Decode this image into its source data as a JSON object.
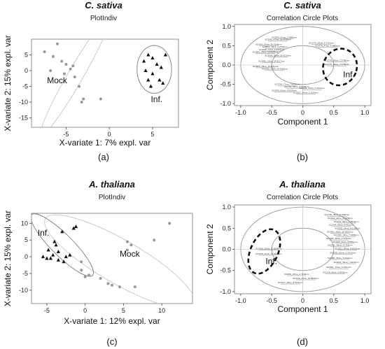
{
  "chart_data": [
    {
      "id": "a",
      "type": "scatter",
      "title": "C. sativa",
      "subtitle": "PlotIndiv",
      "xlabel": "X-variate 1: 7% expl. var",
      "ylabel": "X-variate 2: 15% expl. var",
      "panel_label": "(a)",
      "xlim": [
        -9,
        8
      ],
      "ylim": [
        -18,
        10
      ],
      "xticks": [
        -5,
        0,
        5
      ],
      "yticks": [
        5,
        0,
        -5,
        -10,
        -15
      ],
      "series": [
        {
          "name": "Mock",
          "marker": "circle",
          "color": "#999999",
          "points": [
            [
              -7.5,
              6
            ],
            [
              -6.5,
              4.5
            ],
            [
              -5.5,
              3
            ],
            [
              -6,
              8.5
            ],
            [
              -5,
              2
            ],
            [
              -4.5,
              0.5
            ],
            [
              -4,
              -2
            ],
            [
              -4.2,
              1.5
            ],
            [
              -3.5,
              -5
            ],
            [
              -3,
              -9
            ],
            [
              -3.2,
              -10
            ],
            [
              -1,
              -9
            ],
            [
              -6.8,
              0
            ],
            [
              -5.2,
              -1
            ]
          ]
        },
        {
          "name": "Inf.",
          "marker": "triangle",
          "color": "#111111",
          "points": [
            [
              4,
              3
            ],
            [
              4.5,
              5
            ],
            [
              5,
              4
            ],
            [
              5.5,
              2
            ],
            [
              6,
              1
            ],
            [
              4.2,
              0
            ],
            [
              5,
              -1
            ],
            [
              5.8,
              -3
            ],
            [
              4.8,
              -5
            ],
            [
              6.2,
              -4
            ],
            [
              4.5,
              -3
            ],
            [
              6.5,
              5
            ]
          ]
        }
      ],
      "ellipses": [
        {
          "cx": -4,
          "cy": -2,
          "rx": 7.8,
          "ry": 2.4,
          "angle_deg": -60,
          "color": "#cccccc"
        },
        {
          "cx": 5.2,
          "cy": 0.4,
          "rx": 2.0,
          "ry": 7.6,
          "angle_deg": 0,
          "color": "#888888"
        }
      ],
      "group_labels": [
        {
          "text": "Mock",
          "x": -7.2,
          "y": -4
        },
        {
          "text": "Inf.",
          "x": 4.8,
          "y": -10
        }
      ]
    },
    {
      "id": "b",
      "type": "scatter",
      "title": "C. sativa",
      "subtitle": "Correlation Circle Plots",
      "xlabel": "Component 1",
      "ylabel": "Component 2",
      "panel_label": "(b)",
      "xlim": [
        -1.1,
        1.1
      ],
      "ylim": [
        -1.05,
        1.05
      ],
      "xticks": [
        -1.0,
        -0.5,
        0.0,
        0.5,
        1.0
      ],
      "yticks": [
        1.0,
        0.5,
        0.0,
        -0.5,
        -1.0
      ],
      "circles": [
        1.0,
        0.5
      ],
      "variable_labels": [
        {
          "text": "SC3764_47me_2.0698mm",
          "x": -0.3,
          "y": 0.7
        },
        {
          "text": "SC3962_47me_25.8789mm",
          "x": -0.4,
          "y": 0.64
        },
        {
          "text": "SC4162_69me_26.3198mm",
          "x": -0.55,
          "y": 0.52
        },
        {
          "text": "SC8562_15me_3.0759mm",
          "x": -0.45,
          "y": 0.45
        },
        {
          "text": "SC3902_71me_5.4079mm",
          "x": -0.5,
          "y": 0.38
        },
        {
          "text": "SC3991_25me_29.8929mm",
          "x": -0.6,
          "y": 0.32
        },
        {
          "text": "SC3000_30me_25.6123mm",
          "x": -0.4,
          "y": 0.23
        },
        {
          "text": "SC3981_19me_14.5127mm",
          "x": -0.5,
          "y": 0.08
        },
        {
          "text": "SC3990_18me_23.6211mm",
          "x": -0.6,
          "y": -0.05
        },
        {
          "text": "SC2311_17me_29.9182mm",
          "x": -0.45,
          "y": -0.12
        },
        {
          "text": "SC3776_50me_8.7152mm",
          "x": 0.3,
          "y": 0.55
        },
        {
          "text": "SC3779_47me_4.5889mm",
          "x": 0.4,
          "y": 0.48
        },
        {
          "text": "SC3776_43me_7.5789mm",
          "x": 0.55,
          "y": 0.1
        },
        {
          "text": "SC3776_44me_7.0789mm",
          "x": 0.55,
          "y": 0.0
        },
        {
          "text": "SC3761_71me_7.6009mm",
          "x": -0.25,
          "y": -0.52
        },
        {
          "text": "SC1783_95me_9.3456mm",
          "x": -0.1,
          "y": -0.58
        },
        {
          "text": "SC4471_63me_6.2013mm",
          "x": 0.15,
          "y": -0.62
        },
        {
          "text": "SC3976_54me_4.6519mm",
          "x": -0.3,
          "y": -0.68
        },
        {
          "text": "SC0017_29me_3.1154mm",
          "x": 0.05,
          "y": -0.73
        }
      ],
      "highlight_ellipse": {
        "cx": 0.6,
        "cy": -0.05,
        "rx": 0.27,
        "ry": 0.48,
        "angle_deg": 20,
        "style": "dashed"
      },
      "group_labels": [
        {
          "text": "Inf.",
          "x": 0.65,
          "y": -0.32
        }
      ]
    },
    {
      "id": "c",
      "type": "scatter",
      "title": "A. thaliana",
      "subtitle": "PlotIndiv",
      "xlabel": "X-variate 1: 12% expl. var",
      "ylabel": "X-variate 2: 15% expl. var",
      "panel_label": "(c)",
      "xlim": [
        -7,
        14
      ],
      "ylim": [
        -14,
        13
      ],
      "xticks": [
        -5,
        0,
        5,
        10
      ],
      "yticks": [
        10,
        5,
        0,
        -5,
        -10
      ],
      "series": [
        {
          "name": "Inf.",
          "marker": "triangle",
          "color": "#111111",
          "points": [
            [
              -5.5,
              0
            ],
            [
              -5,
              -0.5
            ],
            [
              -4.5,
              -0.5
            ],
            [
              -4.2,
              0.5
            ],
            [
              -4,
              4.5
            ],
            [
              -3.8,
              3.5
            ],
            [
              -3.5,
              1.5
            ],
            [
              -3.5,
              -1
            ],
            [
              -3,
              7.5
            ],
            [
              -2.5,
              0
            ],
            [
              -2,
              0.5
            ],
            [
              -1.5,
              8.5
            ],
            [
              -1.2,
              9
            ],
            [
              -2.8,
              -1.5
            ],
            [
              -4.8,
              2
            ]
          ]
        },
        {
          "name": "Mock",
          "marker": "circle",
          "color": "#999999",
          "points": [
            [
              -0.5,
              -4
            ],
            [
              0,
              -6
            ],
            [
              0.5,
              -5.5
            ],
            [
              2,
              -6.5
            ],
            [
              3,
              -8
            ],
            [
              3.5,
              -8.5
            ],
            [
              4.5,
              -9
            ],
            [
              5.5,
              4.5
            ],
            [
              5.5,
              2
            ],
            [
              6,
              3.5
            ],
            [
              6.5,
              -9
            ],
            [
              9,
              5
            ],
            [
              11,
              10
            ],
            [
              -0.5,
              -1.5
            ]
          ]
        }
      ],
      "ellipses": [
        {
          "cx": 4.5,
          "cy": -1.5,
          "rx": 11.2,
          "ry": 6.5,
          "angle_deg": 30,
          "color": "#cccccc"
        },
        {
          "cx": -3,
          "cy": 3.5,
          "rx": 5.6,
          "ry": 3.2,
          "angle_deg": 45,
          "color": "#888888"
        }
      ],
      "group_labels": [
        {
          "text": "Inf.",
          "x": -6.2,
          "y": 6.3
        },
        {
          "text": "Mock",
          "x": 4.5,
          "y": 0
        }
      ]
    },
    {
      "id": "d",
      "type": "scatter",
      "title": "A. thaliana",
      "subtitle": "Correlation Circle Plots",
      "xlabel": "Component 1",
      "ylabel": "Component 2",
      "panel_label": "(d)",
      "xlim": [
        -1.1,
        1.1
      ],
      "ylim": [
        -1.05,
        1.05
      ],
      "xticks": [
        -1.0,
        -0.5,
        0.0,
        0.5,
        1.0
      ],
      "yticks": [
        1.0,
        0.5,
        0.0,
        -0.5,
        -1.0
      ],
      "circles": [
        1.0,
        0.5
      ],
      "variable_labels": [
        {
          "text": "SC4763_38me_8.1284mm",
          "x": 0.55,
          "y": 0.8
        },
        {
          "text": "SC4110_42me_8.8128mm",
          "x": 0.6,
          "y": 0.72
        },
        {
          "text": "SC1221_55me_3.6519mm",
          "x": 0.7,
          "y": 0.64
        },
        {
          "text": "SC2764_60me_6.4411mm",
          "x": 0.62,
          "y": 0.56
        },
        {
          "text": "SC0922_24me_9.0138mm",
          "x": 0.72,
          "y": 0.48
        },
        {
          "text": "SC3912_40me_10.5321mm",
          "x": 0.6,
          "y": 0.4
        },
        {
          "text": "SC1764_13me_7.1289mm",
          "x": 0.7,
          "y": 0.32
        },
        {
          "text": "SC2290_38me_2.3412mm",
          "x": 0.58,
          "y": 0.24
        },
        {
          "text": "SC4009_50me_8.8811mm",
          "x": 0.68,
          "y": 0.16
        },
        {
          "text": "SC0711_18me_4.1765mm",
          "x": 0.6,
          "y": 0.08
        },
        {
          "text": "SC1912_43me_5.0019mm",
          "x": 0.72,
          "y": 0.0
        },
        {
          "text": "SC3392_52me_12.9120mm",
          "x": 0.65,
          "y": -0.1
        },
        {
          "text": "SC2881_66me_3.6611mm",
          "x": 0.6,
          "y": -0.22
        },
        {
          "text": "SC0031_56me_7.3210mm",
          "x": 0.7,
          "y": -0.32
        },
        {
          "text": "SC3991_19me_9.2231mm",
          "x": 0.58,
          "y": -0.44
        },
        {
          "text": "SC1178_69me_6.0032mm",
          "x": 0.52,
          "y": -0.56
        },
        {
          "text": "SC3363_18me_11.4009mm",
          "x": -0.55,
          "y": 0.0
        },
        {
          "text": "SC3478_12me_15.0299mm",
          "x": -0.55,
          "y": -0.12
        },
        {
          "text": "SC1891_07me_4.7210mm",
          "x": -0.1,
          "y": -0.6
        },
        {
          "text": "SC2210_44me_10.8823mm",
          "x": 0.05,
          "y": -0.7
        },
        {
          "text": "SC3317_29me_8.1931mm",
          "x": -0.2,
          "y": -0.8
        }
      ],
      "highlight_ellipse": {
        "cx": -0.62,
        "cy": -0.05,
        "rx": 0.22,
        "ry": 0.56,
        "angle_deg": 25,
        "style": "dashed"
      },
      "group_labels": [
        {
          "text": "Inf.",
          "x": -0.6,
          "y": -0.35
        }
      ]
    }
  ]
}
